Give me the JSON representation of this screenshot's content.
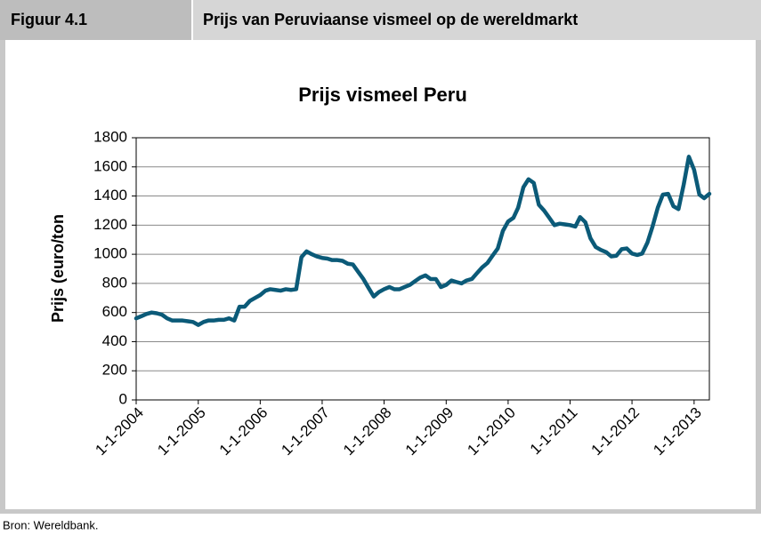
{
  "header": {
    "label": "Figuur 4.1",
    "title": "Prijs van Peruviaanse vismeel op de wereldmarkt"
  },
  "source": "Bron: Wereldbank.",
  "chart_data": {
    "type": "line",
    "title": "Prijs vismeel Peru",
    "y_label": "Prijs (euro/ton",
    "color": "#0b5a78",
    "grid": true,
    "x": [
      "2004-01-01",
      "2004-02-01",
      "2004-03-01",
      "2004-04-01",
      "2004-05-01",
      "2004-06-01",
      "2004-07-01",
      "2004-08-01",
      "2004-09-01",
      "2004-10-01",
      "2004-11-01",
      "2004-12-01",
      "2005-01-01",
      "2005-02-01",
      "2005-03-01",
      "2005-04-01",
      "2005-05-01",
      "2005-06-01",
      "2005-07-01",
      "2005-08-01",
      "2005-09-01",
      "2005-10-01",
      "2005-11-01",
      "2005-12-01",
      "2006-01-01",
      "2006-02-01",
      "2006-03-01",
      "2006-04-01",
      "2006-05-01",
      "2006-06-01",
      "2006-07-01",
      "2006-08-01",
      "2006-09-01",
      "2006-10-01",
      "2006-11-01",
      "2006-12-01",
      "2007-01-01",
      "2007-02-01",
      "2007-03-01",
      "2007-04-01",
      "2007-05-01",
      "2007-06-01",
      "2007-07-01",
      "2007-08-01",
      "2007-09-01",
      "2007-10-01",
      "2007-11-01",
      "2007-12-01",
      "2008-01-01",
      "2008-02-01",
      "2008-03-01",
      "2008-04-01",
      "2008-05-01",
      "2008-06-01",
      "2008-07-01",
      "2008-08-01",
      "2008-09-01",
      "2008-10-01",
      "2008-11-01",
      "2008-12-01",
      "2009-01-01",
      "2009-02-01",
      "2009-03-01",
      "2009-04-01",
      "2009-05-01",
      "2009-06-01",
      "2009-07-01",
      "2009-08-01",
      "2009-09-01",
      "2009-10-01",
      "2009-11-01",
      "2009-12-01",
      "2010-01-01",
      "2010-02-01",
      "2010-03-01",
      "2010-04-01",
      "2010-05-01",
      "2010-06-01",
      "2010-07-01",
      "2010-08-01",
      "2010-09-01",
      "2010-10-01",
      "2010-11-01",
      "2010-12-01",
      "2011-01-01",
      "2011-02-01",
      "2011-03-01",
      "2011-04-01",
      "2011-05-01",
      "2011-06-01",
      "2011-07-01",
      "2011-08-01",
      "2011-09-01",
      "2011-10-01",
      "2011-11-01",
      "2011-12-01",
      "2012-01-01",
      "2012-02-01",
      "2012-03-01",
      "2012-04-01",
      "2012-05-01",
      "2012-06-01",
      "2012-07-01",
      "2012-08-01",
      "2012-09-01",
      "2012-10-01",
      "2012-11-01",
      "2012-12-01",
      "2013-01-01",
      "2013-02-01",
      "2013-03-01",
      "2013-04-01"
    ],
    "values": [
      560,
      575,
      590,
      600,
      595,
      585,
      560,
      545,
      545,
      545,
      540,
      535,
      515,
      535,
      545,
      545,
      550,
      550,
      560,
      545,
      640,
      640,
      680,
      700,
      720,
      750,
      760,
      755,
      750,
      760,
      755,
      760,
      980,
      1020,
      1000,
      985,
      975,
      970,
      960,
      960,
      955,
      935,
      930,
      880,
      830,
      770,
      710,
      740,
      760,
      775,
      760,
      760,
      775,
      790,
      815,
      840,
      855,
      830,
      830,
      775,
      790,
      820,
      810,
      800,
      820,
      830,
      870,
      910,
      940,
      990,
      1040,
      1160,
      1225,
      1250,
      1320,
      1460,
      1515,
      1490,
      1340,
      1300,
      1250,
      1200,
      1210,
      1205,
      1200,
      1190,
      1255,
      1220,
      1110,
      1050,
      1030,
      1015,
      985,
      990,
      1035,
      1040,
      1005,
      995,
      1005,
      1080,
      1190,
      1320,
      1410,
      1415,
      1330,
      1310,
      1480,
      1670,
      1580,
      1410,
      1385,
      1415
    ],
    "xlim": [
      "2004-01-01",
      "2013-04-01"
    ],
    "xticks": [
      {
        "value": "2004-01-01",
        "label": "1-1-2004"
      },
      {
        "value": "2005-01-01",
        "label": "1-1-2005"
      },
      {
        "value": "2006-01-01",
        "label": "1-1-2006"
      },
      {
        "value": "2007-01-01",
        "label": "1-1-2007"
      },
      {
        "value": "2008-01-01",
        "label": "1-1-2008"
      },
      {
        "value": "2009-01-01",
        "label": "1-1-2009"
      },
      {
        "value": "2010-01-01",
        "label": "1-1-2010"
      },
      {
        "value": "2011-01-01",
        "label": "1-1-2011"
      },
      {
        "value": "2012-01-01",
        "label": "1-1-2012"
      },
      {
        "value": "2013-01-01",
        "label": "1-1-2013"
      }
    ],
    "ylim": [
      0,
      1800
    ],
    "yticks": [
      0,
      200,
      400,
      600,
      800,
      1000,
      1200,
      1400,
      1600,
      1800
    ]
  }
}
